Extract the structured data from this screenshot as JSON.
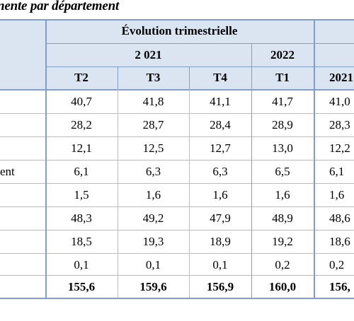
{
  "caption": "nente par département",
  "header": {
    "group": "Évolution trimestrielle",
    "year_a": "2 021",
    "year_b": "2022",
    "quarters": [
      "T2",
      "T3",
      "T4",
      "T1",
      "2021"
    ]
  },
  "row_labels": [
    "",
    "",
    "",
    "ent",
    "",
    "",
    "",
    "",
    ""
  ],
  "rows": [
    [
      "40,7",
      "41,8",
      "41,1",
      "41,7",
      "41,0"
    ],
    [
      "28,2",
      "28,7",
      "28,4",
      "28,9",
      "28,3"
    ],
    [
      "12,1",
      "12,5",
      "12,7",
      "13,0",
      "12,2"
    ],
    [
      "6,1",
      "6,3",
      "6,3",
      "6,5",
      "6,1"
    ],
    [
      "1,5",
      "1,6",
      "1,6",
      "1,6",
      "1,6"
    ],
    [
      "48,3",
      "49,2",
      "47,9",
      "48,9",
      "48,6"
    ],
    [
      "18,5",
      "19,3",
      "18,9",
      "19,2",
      "18,6"
    ],
    [
      "0,1",
      "0,1",
      "0,1",
      "0,2",
      "0,2"
    ],
    [
      "155,6",
      "159,6",
      "156,9",
      "160,0",
      "156,"
    ]
  ],
  "colors": {
    "header_bg": "#dbe5f1",
    "border": "#7f9fc8"
  }
}
